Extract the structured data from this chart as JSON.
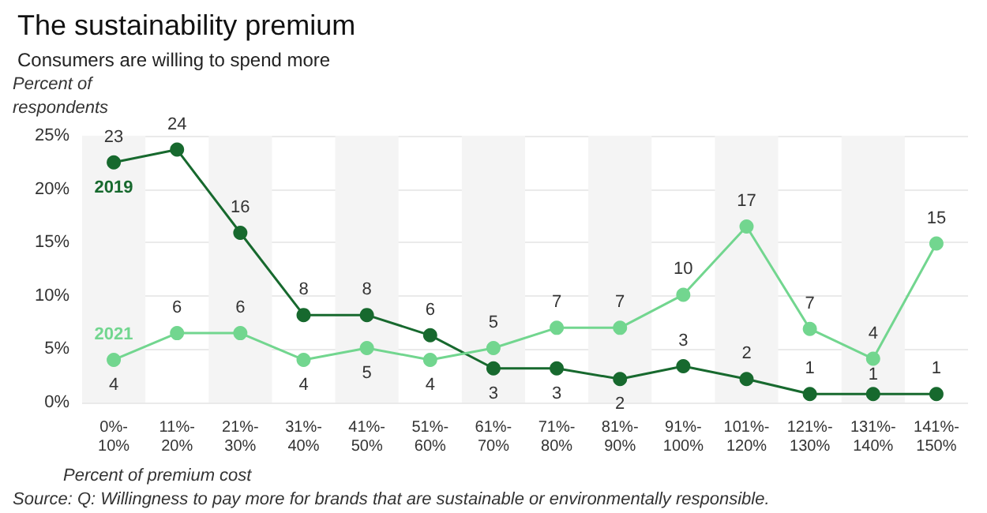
{
  "chart_data": {
    "type": "line",
    "title": "The sustainability premium",
    "subtitle": "Consumers are willing to spend more",
    "ylabel": "Percent of\nrespondents",
    "xlabel": "Percent of premium cost",
    "annotations": [
      "Source: Q: Willingness to pay more for brands that are sustainable or environmentally responsible."
    ],
    "categories": [
      "0%-10%",
      "11%-20%",
      "21%-30%",
      "31%-40%",
      "41%-50%",
      "51%-60%",
      "61%-70%",
      "71%-80%",
      "81%-90%",
      "91%-100%",
      "101%-120%",
      "121%-130%",
      "131%-140%",
      "141%-150%"
    ],
    "series": [
      {
        "name": "2019",
        "color": "#17692e",
        "values": [
          22.5,
          23.7,
          15.9,
          8.2,
          8.2,
          6.3,
          3.2,
          3.2,
          2.2,
          3.4,
          2.2,
          0.8,
          0.8,
          0.8
        ],
        "value_labels": [
          "23",
          "24",
          "16",
          "8",
          "8",
          "6",
          "3",
          "3",
          "2",
          "3",
          "2",
          "1",
          "1",
          "1"
        ]
      },
      {
        "name": "2021",
        "color": "#72d68f",
        "values": [
          4.0,
          6.5,
          6.5,
          4.0,
          5.1,
          4.0,
          5.1,
          7.0,
          7.0,
          10.1,
          16.5,
          6.9,
          4.1,
          14.9
        ],
        "value_labels": [
          "4",
          "6",
          "6",
          "4",
          "5",
          "4",
          "5",
          "7",
          "7",
          "10",
          "17",
          "7",
          "4",
          "15"
        ]
      }
    ],
    "ylim": [
      0,
      25
    ],
    "yticks": [
      {
        "value": 0,
        "label": "0%"
      },
      {
        "value": 5,
        "label": "5%"
      },
      {
        "value": 10,
        "label": "10%"
      },
      {
        "value": 15,
        "label": "15%"
      },
      {
        "value": 20,
        "label": "20%"
      },
      {
        "value": 25,
        "label": "25%"
      }
    ],
    "grid": "y",
    "legend": false,
    "marker": "circle",
    "line_style": "solid"
  }
}
